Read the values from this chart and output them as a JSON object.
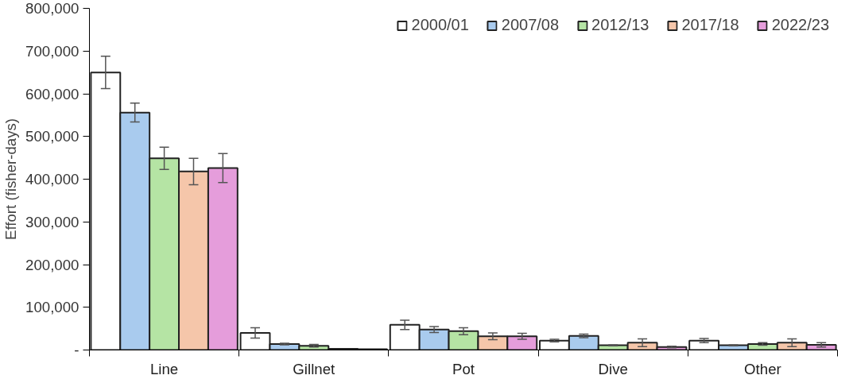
{
  "chart_data": {
    "type": "bar",
    "ylabel": "Effort (fisher-days)",
    "categories": [
      "Line",
      "Gillnet",
      "Pot",
      "Dive",
      "Other"
    ],
    "series": [
      {
        "name": "2000/01",
        "color": "#ffffff",
        "values": [
          650000,
          40000,
          59000,
          22000,
          22000
        ],
        "errors": [
          38000,
          12000,
          11000,
          3000,
          5000
        ]
      },
      {
        "name": "2007/08",
        "color": "#a9cbee",
        "values": [
          556000,
          14000,
          48000,
          33000,
          11000
        ],
        "errors": [
          22000,
          2000,
          7000,
          4000,
          1000
        ]
      },
      {
        "name": "2012/13",
        "color": "#b5e4a4",
        "values": [
          449000,
          10000,
          44000,
          11000,
          14000
        ],
        "errors": [
          26000,
          3000,
          8000,
          1000,
          3000
        ]
      },
      {
        "name": "2017/18",
        "color": "#f5c6aa",
        "values": [
          418000,
          3000,
          32000,
          17000,
          17000
        ],
        "errors": [
          31000,
          null,
          8000,
          9000,
          9000
        ]
      },
      {
        "name": "2022/23",
        "color": "#e59ddb",
        "values": [
          426000,
          2000,
          32000,
          7000,
          12000
        ],
        "errors": [
          34000,
          null,
          7000,
          2000,
          5000
        ]
      }
    ],
    "ylim": [
      0,
      800000
    ],
    "yticks": [
      {
        "value": 0,
        "label": "-"
      },
      {
        "value": 100000,
        "label": "100,000"
      },
      {
        "value": 200000,
        "label": "200,000"
      },
      {
        "value": 300000,
        "label": "300,000"
      },
      {
        "value": 400000,
        "label": "400,000"
      },
      {
        "value": 500000,
        "label": "500,000"
      },
      {
        "value": 600000,
        "label": "600,000"
      },
      {
        "value": 700000,
        "label": "700,000"
      },
      {
        "value": 800000,
        "label": "800,000"
      }
    ],
    "grid": false,
    "legend": "top right"
  }
}
